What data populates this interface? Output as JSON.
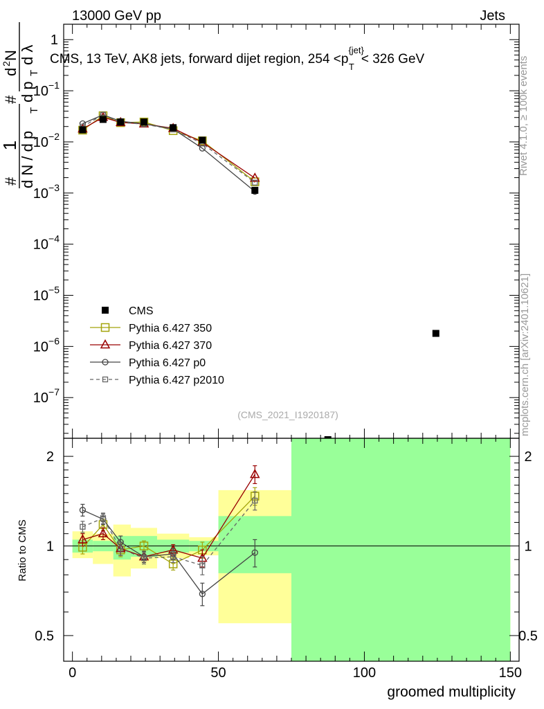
{
  "header": {
    "left": "13000 GeV pp",
    "right": "Jets",
    "side_rivet": "Rivet 4.1.0, ≥ 100k events",
    "side_mcplots": "mcplots.cern.ch [arXiv:2401.10621]",
    "analysis_id": "(CMS_2021_I1920187)"
  },
  "colors": {
    "cms": "#000000",
    "p350": "#a3a30a",
    "p370": "#990000",
    "p0": "#444444",
    "p2010": "#666666",
    "band_inner": "#99ff99",
    "band_outer": "#ffff99"
  },
  "chart_data": [
    {
      "type": "scatter",
      "panel": "main",
      "title": "CMS, 13 TeV, AK8 jets, forward dijet region, 254 <p_T^{jet}< 326 GeV",
      "title_parts": {
        "prefix": "CMS, 13 TeV, AK8 jets, forward dijet region, 254 <p",
        "sup": "{jet}",
        "sub": "T",
        "suffix": "< 326 GeV"
      },
      "ylabel": "1/N dN/dp_T d²N/dp_T dλ",
      "ylabel_parts": {
        "one": "1",
        "hash": "#",
        "den": "d N / d p",
        "den_sub": "T",
        "hash2": "#",
        "num2": "d",
        "num2_sup": "2",
        "num2_tail": "N",
        "den2": "d p",
        "den2_sub": "T",
        "den2_tail": "d λ"
      },
      "yscale": "log",
      "ylim": [
        1.6e-08,
        2.0
      ],
      "xlim": [
        -3,
        153
      ],
      "ytick_values": [
        1,
        0.1,
        0.01,
        0.001,
        0.0001,
        1e-05,
        1e-06,
        1e-07
      ],
      "ytick_labels": [
        {
          "base": "1",
          "exp": ""
        },
        {
          "base": "10",
          "exp": "−1"
        },
        {
          "base": "10",
          "exp": "−2"
        },
        {
          "base": "10",
          "exp": "−3"
        },
        {
          "base": "10",
          "exp": "−4"
        },
        {
          "base": "10",
          "exp": "−5"
        },
        {
          "base": "10",
          "exp": "−6"
        },
        {
          "base": "10",
          "exp": "−7"
        }
      ],
      "legend": [
        {
          "key": "cms",
          "label": "CMS"
        },
        {
          "key": "p350",
          "label": "Pythia 6.427 350"
        },
        {
          "key": "p370",
          "label": "Pythia 6.427 370"
        },
        {
          "key": "p0",
          "label": "Pythia 6.427 p0"
        },
        {
          "key": "p2010",
          "label": "Pythia 6.427 p2010"
        }
      ],
      "legend_position": "lower-left",
      "cms": {
        "x": [
          3.5,
          10.5,
          16.5,
          24.5,
          34.5,
          44.5,
          62.5,
          87.5,
          124.5
        ],
        "y": [
          0.0172,
          0.0275,
          0.0245,
          0.0245,
          0.019,
          0.0108,
          0.00113,
          1.2e-08,
          1.8e-06
        ]
      },
      "series": [
        {
          "key": "p350",
          "name": "Pythia 6.427 350",
          "marker": "square",
          "x": [
            3.5,
            10.5,
            16.5,
            24.5,
            34.5,
            44.5,
            62.5
          ],
          "y": [
            0.017,
            0.0325,
            0.0238,
            0.0245,
            0.0166,
            0.0105,
            0.00166
          ]
        },
        {
          "key": "p370",
          "name": "Pythia 6.427 370",
          "marker": "triangle",
          "x": [
            3.5,
            10.5,
            16.5,
            24.5,
            34.5,
            44.5,
            62.5
          ],
          "y": [
            0.018,
            0.0303,
            0.024,
            0.0225,
            0.0184,
            0.0098,
            0.00196
          ]
        },
        {
          "key": "p0",
          "name": "Pythia 6.427 p0",
          "marker": "circle",
          "x": [
            3.5,
            10.5,
            16.5,
            24.5,
            34.5,
            44.5,
            62.5
          ],
          "y": [
            0.0228,
            0.0338,
            0.0253,
            0.0226,
            0.0179,
            0.0075,
            0.00107
          ]
        },
        {
          "key": "p2010",
          "name": "Pythia 6.427 p2010",
          "marker": "open-square",
          "dashed": true,
          "x": [
            3.5,
            10.5,
            16.5,
            24.5,
            34.5,
            44.5,
            62.5
          ],
          "y": [
            0.0199,
            0.034,
            0.024,
            0.0223,
            0.0175,
            0.0093,
            0.0016
          ]
        }
      ]
    },
    {
      "type": "line",
      "panel": "ratio",
      "xlabel": "groomed multiplicity",
      "ylabel": "Ratio to CMS",
      "yscale": "log",
      "ylim": [
        0.41,
        2.3
      ],
      "xlim": [
        -3,
        153
      ],
      "xticks": [
        0,
        50,
        100,
        150
      ],
      "yticks": [
        0.5,
        1,
        2
      ],
      "ytick_labels": [
        "0.5",
        "1",
        "2"
      ],
      "bins": [
        {
          "lo": 0,
          "hi": 7,
          "inner": [
            0.95,
            1.05
          ],
          "outer": [
            0.91,
            1.12
          ]
        },
        {
          "lo": 7,
          "hi": 14,
          "inner": [
            0.96,
            1.04
          ],
          "outer": [
            0.87,
            1.1
          ]
        },
        {
          "lo": 14,
          "hi": 20,
          "inner": [
            0.9,
            1.08
          ],
          "outer": [
            0.79,
            1.18
          ]
        },
        {
          "lo": 20,
          "hi": 29,
          "inner": [
            0.92,
            1.08
          ],
          "outer": [
            0.84,
            1.15
          ]
        },
        {
          "lo": 29,
          "hi": 40,
          "inner": [
            0.95,
            1.05
          ],
          "outer": [
            0.91,
            1.1
          ]
        },
        {
          "lo": 40,
          "hi": 50,
          "inner": [
            0.96,
            1.04
          ],
          "outer": [
            0.93,
            1.07
          ]
        },
        {
          "lo": 50,
          "hi": 75,
          "inner": [
            0.81,
            1.26
          ],
          "outer": [
            0.55,
            1.54
          ]
        },
        {
          "lo": 75,
          "hi": 150,
          "inner": [
            0.41,
            2.3
          ],
          "outer": [
            0.41,
            2.3
          ]
        }
      ],
      "series": [
        {
          "key": "p350",
          "marker": "square",
          "x": [
            3.5,
            10.5,
            16.5,
            24.5,
            34.5,
            44.5,
            62.5
          ],
          "y": [
            0.99,
            1.18,
            0.97,
            1.0,
            0.87,
            0.97,
            1.47
          ],
          "err": [
            0.05,
            0.05,
            0.05,
            0.04,
            0.04,
            0.06,
            0.1
          ]
        },
        {
          "key": "p370",
          "marker": "triangle",
          "x": [
            3.5,
            10.5,
            16.5,
            24.5,
            34.5,
            44.5,
            62.5
          ],
          "y": [
            1.05,
            1.1,
            0.98,
            0.92,
            0.97,
            0.91,
            1.74
          ],
          "err": [
            0.05,
            0.05,
            0.05,
            0.04,
            0.04,
            0.06,
            0.12
          ]
        },
        {
          "key": "p0",
          "marker": "circle",
          "x": [
            3.5,
            10.5,
            16.5,
            24.5,
            34.5,
            44.5,
            62.5
          ],
          "y": [
            1.32,
            1.23,
            1.03,
            0.92,
            0.94,
            0.69,
            0.95
          ],
          "err": [
            0.06,
            0.05,
            0.05,
            0.04,
            0.04,
            0.06,
            0.1
          ]
        },
        {
          "key": "p2010",
          "marker": "open-square",
          "dashed": true,
          "x": [
            3.5,
            10.5,
            16.5,
            24.5,
            34.5,
            44.5,
            62.5
          ],
          "y": [
            1.16,
            1.24,
            0.98,
            0.91,
            0.92,
            0.86,
            1.42
          ],
          "err": [
            0.05,
            0.05,
            0.05,
            0.04,
            0.04,
            0.06,
            0.1
          ]
        }
      ]
    }
  ]
}
